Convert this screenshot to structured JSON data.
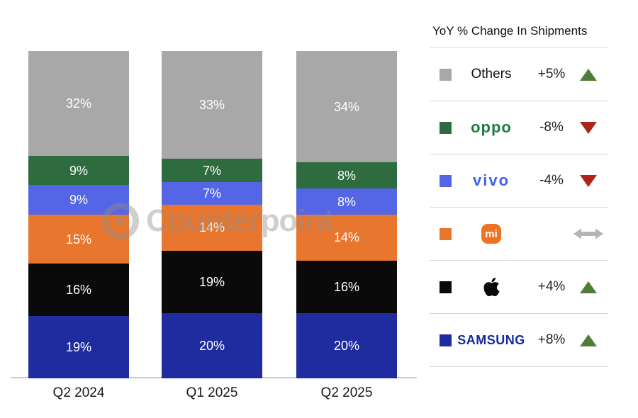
{
  "watermark": {
    "text": "Counterpoint"
  },
  "chart_data": {
    "type": "bar",
    "stacked": true,
    "unit": "%",
    "categories": [
      "Q2 2024",
      "Q1 2025",
      "Q2 2025"
    ],
    "stack_order_top_to_bottom": [
      "Others",
      "OPPO",
      "vivo",
      "Xiaomi",
      "Apple",
      "Samsung"
    ],
    "series": [
      {
        "name": "Others",
        "color": "#a8a8a8",
        "values": [
          32,
          33,
          34
        ]
      },
      {
        "name": "OPPO",
        "color": "#2e6b3f",
        "values": [
          9,
          7,
          8
        ]
      },
      {
        "name": "vivo",
        "color": "#5465e6",
        "values": [
          9,
          7,
          8
        ]
      },
      {
        "name": "Xiaomi",
        "color": "#e8762e",
        "values": [
          15,
          14,
          14
        ]
      },
      {
        "name": "Apple",
        "color": "#0a0a0a",
        "values": [
          16,
          19,
          16
        ]
      },
      {
        "name": "Samsung",
        "color": "#1f2c9f",
        "values": [
          19,
          20,
          20
        ]
      }
    ],
    "value_suffix": "%",
    "ylim": [
      0,
      100
    ],
    "grid": false,
    "legend_position": "right"
  },
  "legend": {
    "title": "YoY % Change In Shipments",
    "rows": [
      {
        "brand": "Others",
        "logo_type": "plain",
        "logo_text": "Others",
        "logo_color": "#111111",
        "change": "+5%",
        "trend": "up",
        "swatch": "#a8a8a8"
      },
      {
        "brand": "OPPO",
        "logo_type": "oppo",
        "logo_text": "oppo",
        "logo_color": "#1e7b42",
        "change": "-8%",
        "trend": "down",
        "swatch": "#2e6b3f"
      },
      {
        "brand": "vivo",
        "logo_type": "vivo",
        "logo_text": "vivo",
        "logo_color": "#3f63e8",
        "change": "-4%",
        "trend": "down",
        "swatch": "#5465e6"
      },
      {
        "brand": "Xiaomi",
        "logo_type": "mi",
        "logo_text": "mi",
        "logo_color": "#ee7220",
        "change": "",
        "trend": "flat",
        "swatch": "#e8762e"
      },
      {
        "brand": "Apple",
        "logo_type": "apple",
        "logo_text": "",
        "logo_color": "#0a0a0a",
        "change": "+4%",
        "trend": "up",
        "swatch": "#0a0a0a"
      },
      {
        "brand": "Samsung",
        "logo_type": "samsung",
        "logo_text": "SAMSUNG",
        "logo_color": "#142a9e",
        "change": "+8%",
        "trend": "up",
        "swatch": "#1f2c9f"
      }
    ],
    "trend_colors": {
      "up": "#4e7d38",
      "down": "#b02418",
      "flat": "#b5b5b5"
    }
  }
}
